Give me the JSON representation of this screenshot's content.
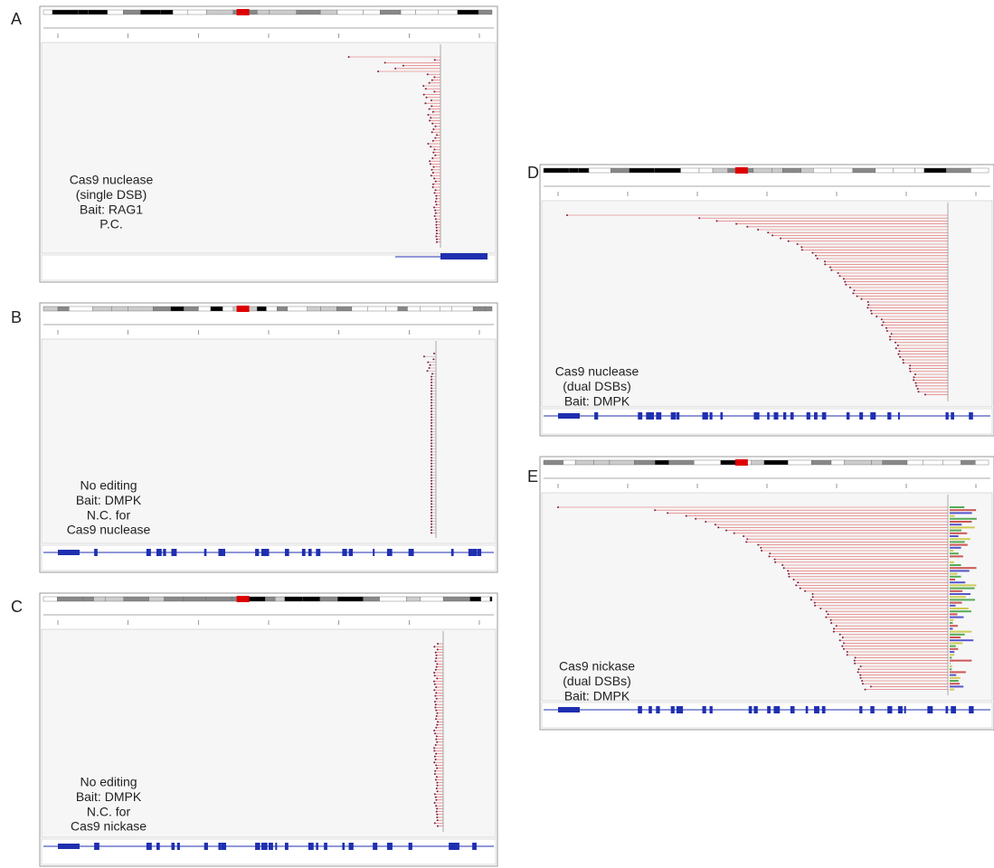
{
  "panels": [
    {
      "letter": "A",
      "label": [
        "Cas9 nuclease",
        "(single DSB)",
        "Bait: RAG1",
        "P.C."
      ]
    },
    {
      "letter": "B",
      "label": [
        "No editing",
        "Bait: DMPK",
        "N.C. for",
        "Cas9 nuclease"
      ]
    },
    {
      "letter": "C",
      "label": [
        "No editing",
        "Bait: DMPK",
        "N.C. for",
        "Cas9 nickase"
      ]
    },
    {
      "letter": "D",
      "label": [
        "Cas9 nuclease",
        "(dual DSBs)",
        "Bait: DMPK"
      ]
    },
    {
      "letter": "E",
      "label": [
        "Cas9 nickase",
        "(dual DSBs)",
        "Bait: DMPK"
      ]
    }
  ]
}
